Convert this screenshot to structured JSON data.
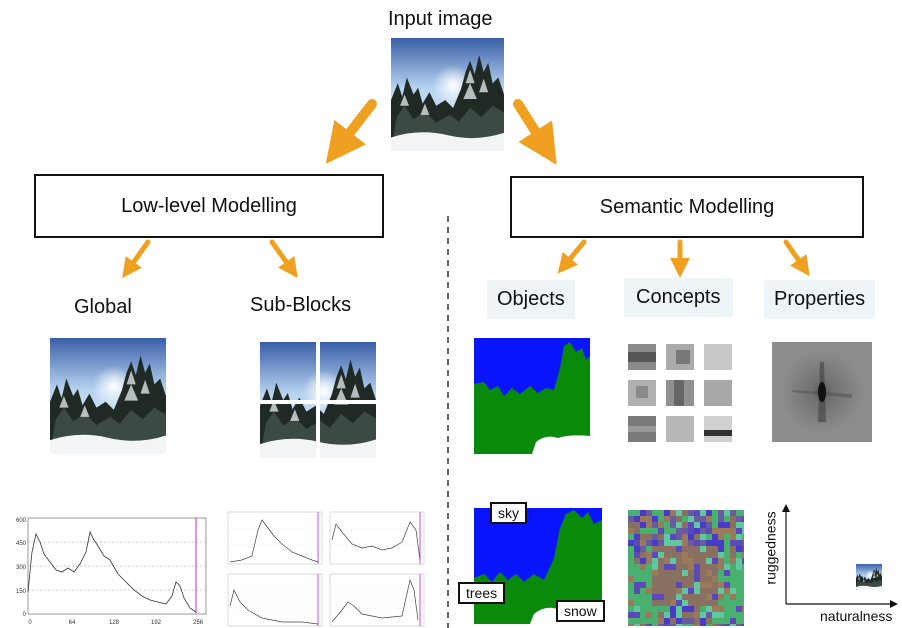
{
  "title": "Input image",
  "boxes": {
    "low": "Low-level Modelling",
    "semantic": "Semantic Modelling"
  },
  "low_level": {
    "global": "Global",
    "sub_blocks": "Sub-Blocks"
  },
  "semantic": {
    "objects": "Objects",
    "concepts": "Concepts",
    "properties": "Properties"
  },
  "object_tags": {
    "sky": "sky",
    "trees": "trees",
    "snow": "snow"
  },
  "property_axes": {
    "y": "ruggedness",
    "x": "naturalness"
  },
  "histogram": {
    "y_ticks": [
      "600",
      "450",
      "300",
      "150",
      "0"
    ],
    "x_ticks": [
      "0",
      "64",
      "128",
      "192",
      "256"
    ]
  },
  "colors": {
    "arrow": "#f0a020",
    "sky_seg": "#0a14ff",
    "tree_seg": "#0a8a0a",
    "snow_seg": "#ffffff"
  }
}
